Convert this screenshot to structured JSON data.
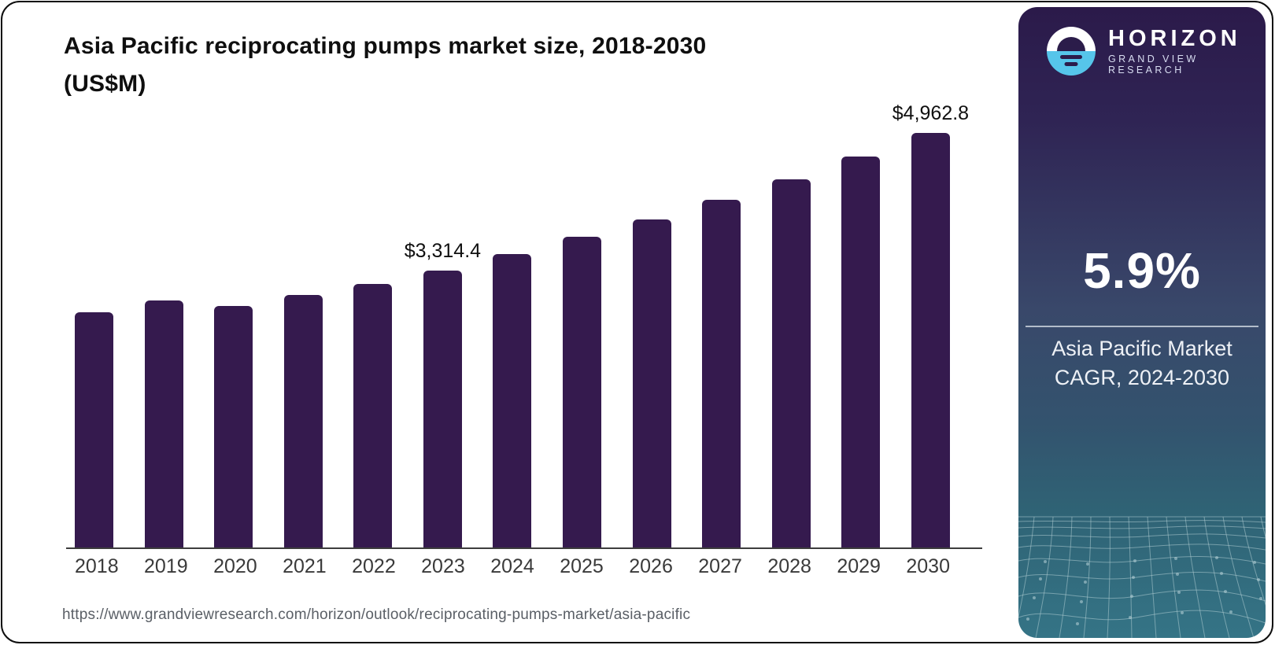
{
  "card": {
    "title_line1": "Asia Pacific reciprocating pumps market size, 2018-2030",
    "title_line2": "(US$M)",
    "source_url": "https://www.grandviewresearch.com/horizon/outlook/reciprocating-pumps-market/asia-pacific"
  },
  "chart_data": {
    "type": "bar",
    "title": "Asia Pacific reciprocating pumps market size, 2018-2030 (US$M)",
    "unit": "US$M",
    "categories": [
      "2018",
      "2019",
      "2020",
      "2021",
      "2022",
      "2023",
      "2024",
      "2025",
      "2026",
      "2027",
      "2028",
      "2029",
      "2030"
    ],
    "values": [
      2820,
      2960,
      2890,
      3020,
      3155,
      3314.4,
      3515,
      3720,
      3930,
      4160,
      4410,
      4680,
      4962.8
    ],
    "value_labels": {
      "2023": "$3,314.4",
      "2030": "$4,962.8"
    },
    "bar_color": "#351a4e",
    "ylim": [
      0,
      5200
    ],
    "grid": false,
    "legend": false
  },
  "sidebar": {
    "logo": {
      "brand": "HORIZON",
      "subbrand": "GRAND VIEW RESEARCH"
    },
    "stat_value": "5.9%",
    "stat_caption_line1": "Asia Pacific Market",
    "stat_caption_line2": "CAGR, 2024-2030",
    "colors": {
      "panel_top": "#2b1a4a",
      "panel_mid": "#39486a",
      "panel_bottom": "#357486",
      "logo_blue": "#56c5ea",
      "bar": "#351a4e"
    }
  }
}
